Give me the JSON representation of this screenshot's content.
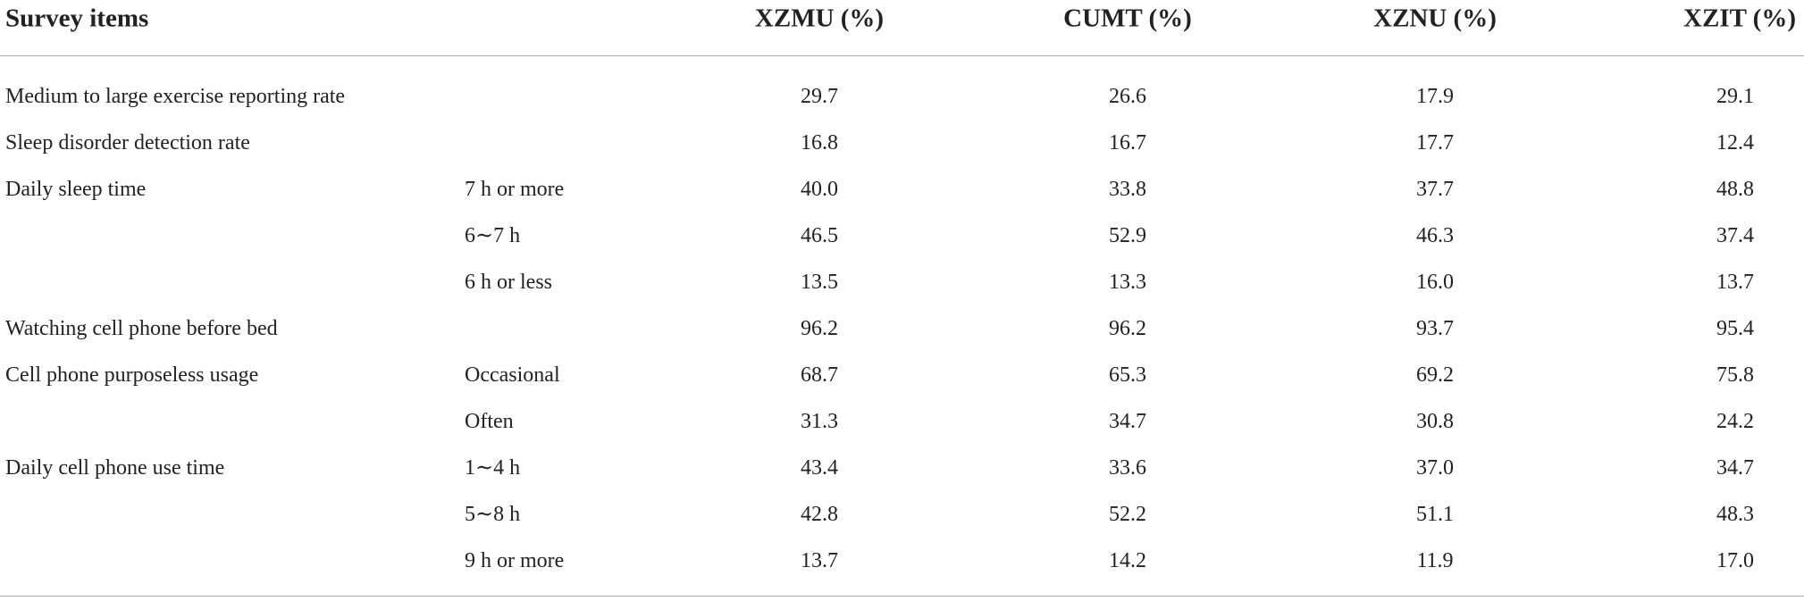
{
  "table": {
    "header": [
      "Survey items",
      "XZMU (%)",
      "CUMT (%)",
      "XZNU (%)",
      "XZIT (%)"
    ],
    "rows": [
      {
        "item": "Medium to large exercise reporting rate",
        "values": [
          "29.7",
          "26.6",
          "17.9",
          "29.1"
        ]
      },
      {
        "item": "Sleep disorder detection rate",
        "values": [
          "16.8",
          "16.7",
          "17.7",
          "12.4"
        ]
      },
      {
        "item": "Daily sleep time",
        "sub": "7 h or more",
        "values": [
          "40.0",
          "33.8",
          "37.7",
          "48.8"
        ]
      },
      {
        "sub": "6∼7 h",
        "values": [
          "46.5",
          "52.9",
          "46.3",
          "37.4"
        ]
      },
      {
        "sub": "6 h or less",
        "values": [
          "13.5",
          "13.3",
          "16.0",
          "13.7"
        ]
      },
      {
        "item": "Watching cell phone before bed",
        "values": [
          "96.2",
          "96.2",
          "93.7",
          "95.4"
        ]
      },
      {
        "item": "Cell phone purposeless usage",
        "sub": "Occasional",
        "values": [
          "68.7",
          "65.3",
          "69.2",
          "75.8"
        ]
      },
      {
        "sub": "Often",
        "values": [
          "31.3",
          "34.7",
          "30.8",
          "24.2"
        ]
      },
      {
        "item": "Daily cell phone use time",
        "sub": "1∼4 h",
        "values": [
          "43.4",
          "33.6",
          "37.0",
          "34.7"
        ]
      },
      {
        "sub": "5∼8 h",
        "values": [
          "42.8",
          "52.2",
          "51.1",
          "48.3"
        ]
      },
      {
        "sub": "9 h or more",
        "values": [
          "13.7",
          "14.2",
          "11.9",
          "17.0"
        ]
      }
    ]
  }
}
